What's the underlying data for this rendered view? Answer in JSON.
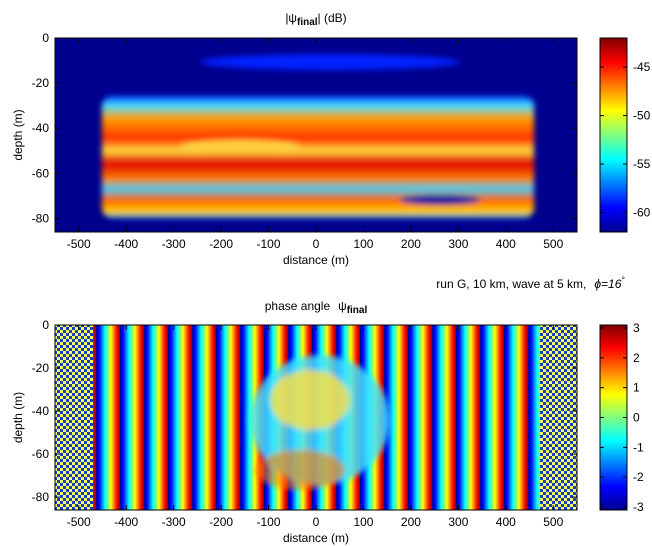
{
  "chart_data": [
    {
      "type": "heatmap",
      "title": {
        "prefix": "|ψ",
        "sub": "final",
        "suffix": "| (dB)"
      },
      "xlabel": "distance (m)",
      "ylabel": "depth (m)",
      "xlim": [
        -550,
        550
      ],
      "xticks": [
        -500,
        -400,
        -300,
        -200,
        -100,
        0,
        100,
        200,
        300,
        400,
        500
      ],
      "ylim": [
        -86,
        0
      ],
      "yticks": [
        0,
        -20,
        -40,
        -60,
        -80
      ],
      "colormap": "jet",
      "colorbar": {
        "lim": [
          -62,
          -42
        ],
        "ticks": [
          -45,
          -50,
          -55,
          -60
        ]
      }
    },
    {
      "type": "heatmap",
      "annotation": {
        "text": "run G, 10 km, wave at 5 km,",
        "phi": "ϕ=16",
        "sup": "°"
      },
      "title": {
        "prefix": "phase angle",
        "psi": "ψ",
        "sub": "final"
      },
      "xlabel": "distance (m)",
      "ylabel": "depth (m)",
      "xlim": [
        -550,
        550
      ],
      "xticks": [
        -500,
        -400,
        -300,
        -200,
        -100,
        0,
        100,
        200,
        300,
        400,
        500
      ],
      "ylim": [
        -86,
        0
      ],
      "yticks": [
        0,
        -20,
        -40,
        -60,
        -80
      ],
      "colormap": "jet",
      "colorbar": {
        "lim": [
          -3.1,
          3.1
        ],
        "ticks": [
          3,
          2,
          1,
          0,
          -1,
          -2,
          -3
        ]
      }
    }
  ]
}
